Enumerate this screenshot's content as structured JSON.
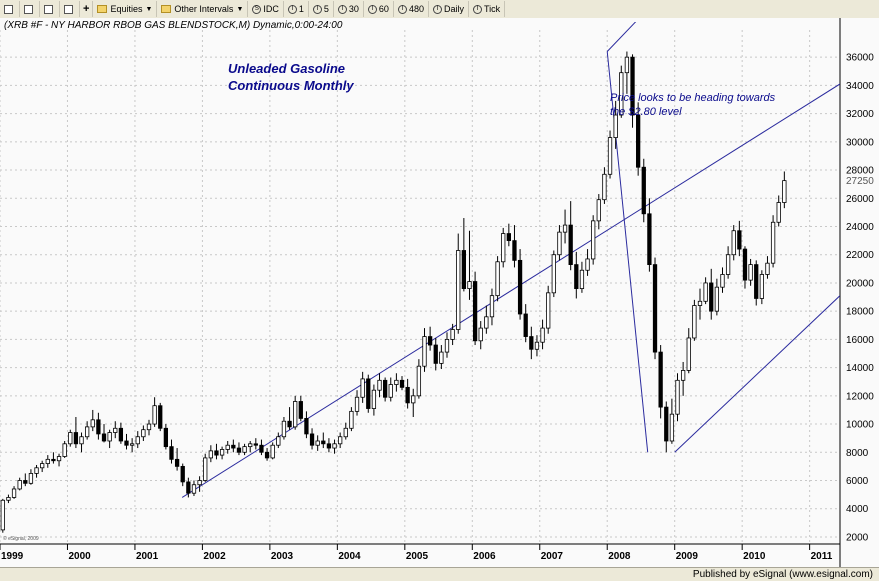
{
  "toolbar": {
    "items": [
      {
        "label": "Equities",
        "icon": "folder-icon",
        "dropdown": true
      },
      {
        "label": "Other Intervals",
        "icon": "folder-icon",
        "dropdown": true
      },
      {
        "label": "IDC",
        "icon": "s-icon"
      },
      {
        "label": "1",
        "icon": "i-icon"
      },
      {
        "label": "5",
        "icon": "i-icon"
      },
      {
        "label": "30",
        "icon": "i-icon"
      },
      {
        "label": "60",
        "icon": "i-icon"
      },
      {
        "label": "480",
        "icon": "i-icon"
      },
      {
        "label": "Daily",
        "icon": "i-icon"
      },
      {
        "label": "Tick",
        "icon": "i-icon"
      }
    ]
  },
  "chart_header": "(XRB #F - NY HARBOR RBOB GAS BLENDSTOCK,M) Dynamic,0:00-24:00",
  "watermark": "© eSignal, 2009",
  "footer": "Published by eSignal (www.esignal.com)",
  "chart_data": {
    "type": "candlestick",
    "title": "Unleaded Gasoline\nContinuous Monthly",
    "annotation": "Price looks to be heading towards\nthe $2.80 level",
    "last_price_label": "27250",
    "x_ticks": [
      "1999",
      "2000",
      "2001",
      "2002",
      "2003",
      "2004",
      "2005",
      "2006",
      "2007",
      "2008",
      "2009",
      "2010",
      "2011"
    ],
    "y_ticks": [
      2000,
      4000,
      6000,
      8000,
      10000,
      12000,
      14000,
      16000,
      18000,
      20000,
      22000,
      24000,
      26000,
      28000,
      30000,
      32000,
      34000,
      36000
    ],
    "ylim": [
      1500,
      37500
    ],
    "xlim": [
      1999.0,
      2011.45
    ],
    "grid": true,
    "colors": {
      "up": "#ffffff",
      "down": "#000000",
      "line": "#2b2b9e",
      "grid": "#c8c8c8",
      "text": "#0a0a8c"
    },
    "channel_lines": [
      {
        "x": [
          2001.7,
          2011.45
        ],
        "y": [
          4800,
          34100
        ]
      },
      {
        "x": [
          2009.0,
          2011.45
        ],
        "y": [
          8000,
          19100
        ]
      },
      {
        "x": [
          2008.0,
          2008.6
        ],
        "y": [
          36400,
          39400
        ]
      },
      {
        "x": [
          2008.0,
          2008.6
        ],
        "y": [
          36400,
          8000
        ]
      }
    ],
    "ohlc": [
      [
        2500,
        4700,
        2300,
        4600
      ],
      [
        4600,
        5000,
        4400,
        4800
      ],
      [
        4800,
        5600,
        4700,
        5400
      ],
      [
        5400,
        6200,
        5300,
        6000
      ],
      [
        6000,
        6500,
        5600,
        5800
      ],
      [
        5800,
        6800,
        5700,
        6500
      ],
      [
        6500,
        7100,
        6200,
        6900
      ],
      [
        6900,
        7400,
        6600,
        7200
      ],
      [
        7200,
        7800,
        6900,
        7500
      ],
      [
        7500,
        8000,
        7200,
        7400
      ],
      [
        7400,
        7900,
        7000,
        7700
      ],
      [
        7700,
        8800,
        7600,
        8600
      ],
      [
        8600,
        9600,
        8400,
        9400
      ],
      [
        9400,
        10500,
        8300,
        8600
      ],
      [
        8600,
        9400,
        8000,
        9100
      ],
      [
        9100,
        10200,
        8900,
        9800
      ],
      [
        9800,
        11000,
        9500,
        10300
      ],
      [
        10300,
        10800,
        8900,
        9300
      ],
      [
        9300,
        10000,
        8700,
        8800
      ],
      [
        8800,
        9600,
        8300,
        9400
      ],
      [
        9400,
        10200,
        9000,
        9700
      ],
      [
        9700,
        10100,
        8600,
        8800
      ],
      [
        8800,
        9300,
        8200,
        8500
      ],
      [
        8500,
        9000,
        8000,
        8600
      ],
      [
        8600,
        9500,
        8300,
        9100
      ],
      [
        9100,
        9900,
        8800,
        9600
      ],
      [
        9600,
        10300,
        9200,
        10000
      ],
      [
        10000,
        11900,
        9800,
        11300
      ],
      [
        11300,
        11500,
        9500,
        9700
      ],
      [
        9700,
        10000,
        8200,
        8400
      ],
      [
        8400,
        8900,
        7200,
        7500
      ],
      [
        7500,
        8300,
        6700,
        7000
      ],
      [
        7000,
        7200,
        5600,
        5900
      ],
      [
        5900,
        6200,
        4800,
        5100
      ],
      [
        5100,
        6000,
        4900,
        5700
      ],
      [
        5700,
        6300,
        5200,
        6000
      ],
      [
        6000,
        7900,
        5900,
        7600
      ],
      [
        7600,
        8500,
        7300,
        8100
      ],
      [
        8100,
        8600,
        7500,
        7800
      ],
      [
        7800,
        8400,
        7500,
        8200
      ],
      [
        8200,
        8800,
        7900,
        8500
      ],
      [
        8500,
        8900,
        8000,
        8300
      ],
      [
        8300,
        8700,
        7800,
        8000
      ],
      [
        8000,
        8600,
        7800,
        8400
      ],
      [
        8400,
        8800,
        8000,
        8600
      ],
      [
        8600,
        9000,
        8200,
        8500
      ],
      [
        8500,
        8900,
        7800,
        8000
      ],
      [
        8000,
        8300,
        7400,
        7600
      ],
      [
        7600,
        8700,
        7500,
        8500
      ],
      [
        8500,
        9400,
        8300,
        9100
      ],
      [
        9100,
        10500,
        8900,
        10200
      ],
      [
        10200,
        11200,
        9600,
        9800
      ],
      [
        9800,
        12000,
        9600,
        11600
      ],
      [
        11600,
        12000,
        10200,
        10400
      ],
      [
        10400,
        10900,
        9000,
        9300
      ],
      [
        9300,
        9700,
        8200,
        8500
      ],
      [
        8500,
        9200,
        8100,
        8800
      ],
      [
        8800,
        9400,
        8300,
        8600
      ],
      [
        8600,
        9000,
        8000,
        8300
      ],
      [
        8300,
        8900,
        7900,
        8600
      ],
      [
        8600,
        9400,
        8300,
        9100
      ],
      [
        9100,
        10100,
        8900,
        9700
      ],
      [
        9700,
        11200,
        9500,
        10900
      ],
      [
        10900,
        12400,
        10600,
        11900
      ],
      [
        11900,
        13700,
        11500,
        13200
      ],
      [
        13200,
        13500,
        10800,
        11100
      ],
      [
        11100,
        12800,
        10600,
        12400
      ],
      [
        12400,
        13600,
        11900,
        13100
      ],
      [
        13100,
        13300,
        11600,
        11900
      ],
      [
        11900,
        13300,
        11600,
        12800
      ],
      [
        12800,
        13600,
        12300,
        13100
      ],
      [
        13100,
        13400,
        12400,
        12600
      ],
      [
        12600,
        13200,
        11100,
        11500
      ],
      [
        11500,
        12500,
        10500,
        12000
      ],
      [
        12000,
        14600,
        11800,
        14100
      ],
      [
        14100,
        16800,
        13700,
        16200
      ],
      [
        16200,
        16900,
        15200,
        15600
      ],
      [
        15600,
        16100,
        13800,
        14300
      ],
      [
        14300,
        15600,
        13900,
        15100
      ],
      [
        15100,
        16500,
        14700,
        16000
      ],
      [
        16000,
        17100,
        15600,
        16700
      ],
      [
        16700,
        23500,
        16400,
        22300
      ],
      [
        22300,
        24600,
        19400,
        19600
      ],
      [
        19600,
        23700,
        18800,
        20100
      ],
      [
        20100,
        20800,
        15600,
        15900
      ],
      [
        15900,
        17300,
        15300,
        16800
      ],
      [
        16800,
        18400,
        16400,
        17600
      ],
      [
        17600,
        19600,
        17000,
        19100
      ],
      [
        19100,
        21900,
        18700,
        21500
      ],
      [
        21500,
        23900,
        21100,
        23500
      ],
      [
        23500,
        24200,
        22600,
        23000
      ],
      [
        23000,
        24100,
        21100,
        21600
      ],
      [
        21600,
        22400,
        17400,
        17800
      ],
      [
        17800,
        18500,
        15800,
        16200
      ],
      [
        16200,
        16900,
        14600,
        15300
      ],
      [
        15300,
        16300,
        14800,
        15800
      ],
      [
        15800,
        17400,
        15300,
        16800
      ],
      [
        16800,
        19800,
        16400,
        19300
      ],
      [
        19300,
        22300,
        19000,
        22000
      ],
      [
        22000,
        24100,
        21600,
        23600
      ],
      [
        23600,
        25200,
        22800,
        24100
      ],
      [
        24100,
        25800,
        20900,
        21300
      ],
      [
        21300,
        22200,
        18900,
        19600
      ],
      [
        19600,
        21500,
        19300,
        20900
      ],
      [
        20900,
        22400,
        20500,
        21700
      ],
      [
        21700,
        24800,
        21300,
        24400
      ],
      [
        24400,
        26300,
        23800,
        25900
      ],
      [
        25900,
        28200,
        25600,
        27700
      ],
      [
        27700,
        30800,
        27400,
        30300
      ],
      [
        30300,
        32900,
        29500,
        31900
      ],
      [
        31900,
        35400,
        31700,
        34900
      ],
      [
        34900,
        36400,
        33400,
        36000
      ],
      [
        36000,
        36200,
        31000,
        31900
      ],
      [
        31900,
        32800,
        27600,
        28200
      ],
      [
        28200,
        28800,
        24300,
        24900
      ],
      [
        24900,
        26000,
        20800,
        21300
      ],
      [
        21300,
        21800,
        14600,
        15100
      ],
      [
        15100,
        15600,
        10400,
        11200
      ],
      [
        11200,
        11600,
        8000,
        8800
      ],
      [
        8800,
        11800,
        8600,
        10700
      ],
      [
        10700,
        13600,
        10200,
        13100
      ],
      [
        13100,
        14400,
        12000,
        13800
      ],
      [
        13800,
        16800,
        13600,
        16100
      ],
      [
        16100,
        18800,
        15900,
        18400
      ],
      [
        18400,
        19600,
        17400,
        18700
      ],
      [
        18700,
        20400,
        18500,
        20000
      ],
      [
        20000,
        21000,
        17400,
        18000
      ],
      [
        18000,
        20300,
        17700,
        19700
      ],
      [
        19700,
        21100,
        19300,
        20600
      ],
      [
        20600,
        22600,
        20300,
        22000
      ],
      [
        22000,
        24100,
        21600,
        23700
      ],
      [
        23700,
        24400,
        21900,
        22400
      ],
      [
        22400,
        22600,
        19600,
        20200
      ],
      [
        20200,
        21700,
        19800,
        21300
      ],
      [
        21300,
        21600,
        18400,
        18900
      ],
      [
        18900,
        20900,
        18500,
        20600
      ],
      [
        20600,
        21900,
        20300,
        21400
      ],
      [
        21400,
        24800,
        21100,
        24300
      ],
      [
        24300,
        26200,
        24000,
        25700
      ],
      [
        25700,
        27900,
        25300,
        27250
      ]
    ]
  }
}
